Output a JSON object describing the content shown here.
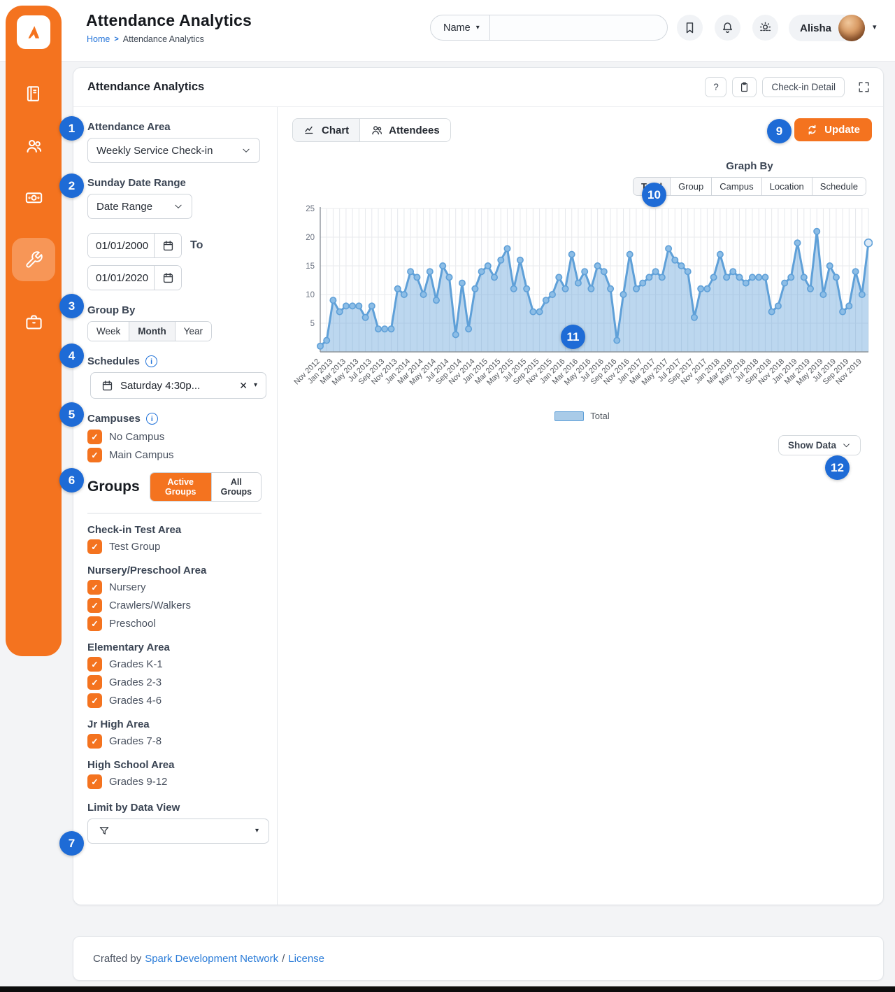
{
  "header": {
    "title": "Attendance Analytics",
    "breadcrumb": {
      "home": "Home",
      "separator": ">",
      "current": "Attendance Analytics"
    },
    "search": {
      "category": "Name",
      "value": ""
    },
    "user": {
      "name": "Alisha"
    }
  },
  "icons": {
    "caret_down": "▾",
    "close": "✕",
    "check": "✓",
    "help": "?"
  },
  "panel": {
    "title": "Attendance Analytics",
    "help_label": "?",
    "checkin_detail_label": "Check-in Detail"
  },
  "filters": {
    "attendance_area": {
      "label": "Attendance Area",
      "value": "Weekly Service Check-in"
    },
    "sunday_date_range": {
      "label": "Sunday Date Range",
      "preset": "Date Range",
      "from": "01/01/2000",
      "to_label": "To",
      "to": "01/01/2020"
    },
    "group_by": {
      "label": "Group By",
      "options": [
        "Week",
        "Month",
        "Year"
      ],
      "active": "Month"
    },
    "schedules": {
      "label": "Schedules",
      "selected": "Saturday 4:30p..."
    },
    "campuses": {
      "label": "Campuses",
      "items": [
        {
          "label": "No Campus",
          "checked": true
        },
        {
          "label": "Main Campus",
          "checked": true
        }
      ]
    },
    "groups": {
      "label": "Groups",
      "active_button": "Active Groups",
      "all_button": "All Groups",
      "active": "Active Groups",
      "areas": [
        {
          "name": "Check-in Test Area",
          "groups": [
            "Test Group"
          ]
        },
        {
          "name": "Nursery/Preschool Area",
          "groups": [
            "Nursery",
            "Crawlers/Walkers",
            "Preschool"
          ]
        },
        {
          "name": "Elementary Area",
          "groups": [
            "Grades K-1",
            "Grades 2-3",
            "Grades 4-6"
          ]
        },
        {
          "name": "Jr High Area",
          "groups": [
            "Grades 7-8"
          ]
        },
        {
          "name": "High School Area",
          "groups": [
            "Grades 9-12"
          ]
        }
      ]
    },
    "data_view": {
      "label": "Limit by Data View"
    }
  },
  "chart_panel": {
    "tabs": [
      {
        "label": "Chart",
        "active": true
      },
      {
        "label": "Attendees",
        "active": false
      }
    ],
    "update_label": "Update",
    "graph_by": {
      "label": "Graph By",
      "options": [
        "Total",
        "Group",
        "Campus",
        "Location",
        "Schedule"
      ],
      "active": "Total"
    },
    "legend_label": "Total",
    "show_data_label": "Show Data"
  },
  "callouts": {
    "c1": "1",
    "c2": "2",
    "c3": "3",
    "c4": "4",
    "c5": "5",
    "c6": "6",
    "c7": "7",
    "c9": "9",
    "c10": "10",
    "c11": "11",
    "c12": "12"
  },
  "footer": {
    "prefix": "Crafted by",
    "link_network": "Spark Development Network",
    "separator": "/",
    "link_license": "License"
  },
  "colors": {
    "accent_orange": "#f4731f",
    "badge_blue": "#1e6bd6",
    "link_blue": "#2273d9",
    "chart_line": "#5fa0d8",
    "chart_fill": "#aecfea"
  },
  "chart_data": {
    "type": "area",
    "title": "",
    "xlabel": "",
    "ylabel": "",
    "ylim": [
      0,
      25
    ],
    "yticks": [
      0,
      5,
      10,
      15,
      20,
      25
    ],
    "grid": true,
    "legend_position": "bottom",
    "label_every": 2,
    "x_labels": [
      "Nov 2012",
      "Jan 2013",
      "Mar 2013",
      "May 2013",
      "Jul 2013",
      "Sep 2013",
      "Nov 2013",
      "Jan 2014",
      "Mar 2014",
      "May 2014",
      "Jul 2014",
      "Sep 2014",
      "Nov 2014",
      "Jan 2015",
      "Mar 2015",
      "May 2015",
      "Jul 2015",
      "Sep 2015",
      "Nov 2015",
      "Jan 2016",
      "Mar 2016",
      "May 2016",
      "Jul 2016",
      "Sep 2016",
      "Nov 2016",
      "Jan 2017",
      "Mar 2017",
      "May 2017",
      "Jul 2017",
      "Sep 2017",
      "Nov 2017",
      "Jan 2018",
      "Mar 2018",
      "May 2018",
      "Jul 2018",
      "Sep 2018",
      "Nov 2018",
      "Jan 2019",
      "Mar 2019",
      "May 2019",
      "Jul 2019",
      "Sep 2019",
      "Nov 2019"
    ],
    "series": [
      {
        "name": "Total",
        "values": [
          1,
          2,
          9,
          7,
          8,
          8,
          8,
          6,
          8,
          4,
          4,
          4,
          11,
          10,
          14,
          13,
          10,
          14,
          9,
          15,
          13,
          3,
          12,
          4,
          11,
          14,
          15,
          13,
          16,
          18,
          11,
          16,
          11,
          7,
          7,
          9,
          10,
          13,
          11,
          17,
          12,
          14,
          11,
          15,
          14,
          11,
          2,
          10,
          17,
          11,
          12,
          13,
          14,
          13,
          18,
          16,
          15,
          14,
          6,
          11,
          11,
          13,
          17,
          13,
          14,
          13,
          12,
          13,
          13,
          13,
          7,
          8,
          12,
          13,
          19,
          13,
          11,
          21,
          10,
          15,
          13,
          7,
          8,
          14,
          10,
          19
        ]
      }
    ]
  }
}
